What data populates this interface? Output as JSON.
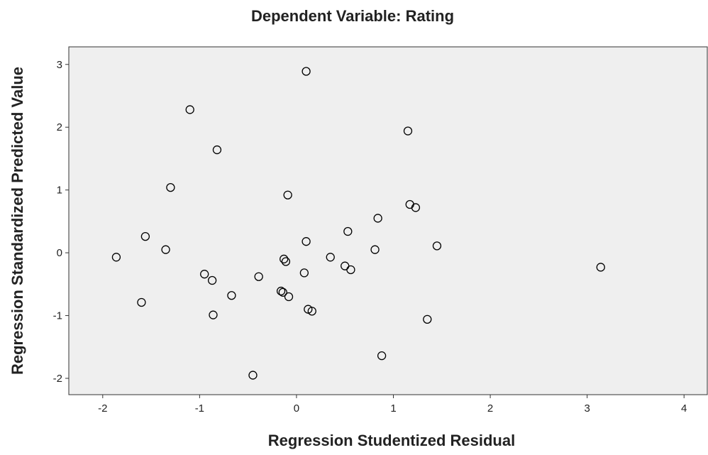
{
  "chart_data": {
    "type": "scatter",
    "title": "Dependent Variable: Rating",
    "xlabel": "Regression Studentized Residual",
    "ylabel": "Regression Standardized Predicted Value",
    "x": [
      0.1,
      -1.1,
      1.15,
      -0.82,
      -1.3,
      -0.09,
      1.17,
      1.23,
      0.84,
      0.53,
      -1.56,
      0.1,
      1.45,
      -1.35,
      0.81,
      -1.86,
      0.35,
      -0.13,
      -0.11,
      0.5,
      0.56,
      3.14,
      0.08,
      -0.95,
      -0.39,
      -0.87,
      -0.16,
      -0.14,
      -0.67,
      -0.08,
      -1.6,
      0.12,
      0.16,
      -0.86,
      1.35,
      0.88,
      -0.45
    ],
    "y": [
      2.89,
      2.28,
      1.94,
      1.64,
      1.04,
      0.92,
      0.77,
      0.72,
      0.55,
      0.34,
      0.26,
      0.18,
      0.11,
      0.05,
      0.05,
      -0.07,
      -0.07,
      -0.1,
      -0.14,
      -0.21,
      -0.27,
      -0.23,
      -0.32,
      -0.34,
      -0.38,
      -0.44,
      -0.61,
      -0.63,
      -0.68,
      -0.7,
      -0.79,
      -0.9,
      -0.93,
      -0.99,
      -1.06,
      -1.64,
      -1.95
    ],
    "xlim": [
      -2.35,
      4.24
    ],
    "ylim": [
      -2.26,
      3.28
    ],
    "xticks": [
      -2,
      -1,
      0,
      1,
      2,
      3,
      4
    ],
    "yticks": [
      -2,
      -1,
      0,
      1,
      2,
      3
    ],
    "color": "#000000",
    "background": "#efefef"
  }
}
